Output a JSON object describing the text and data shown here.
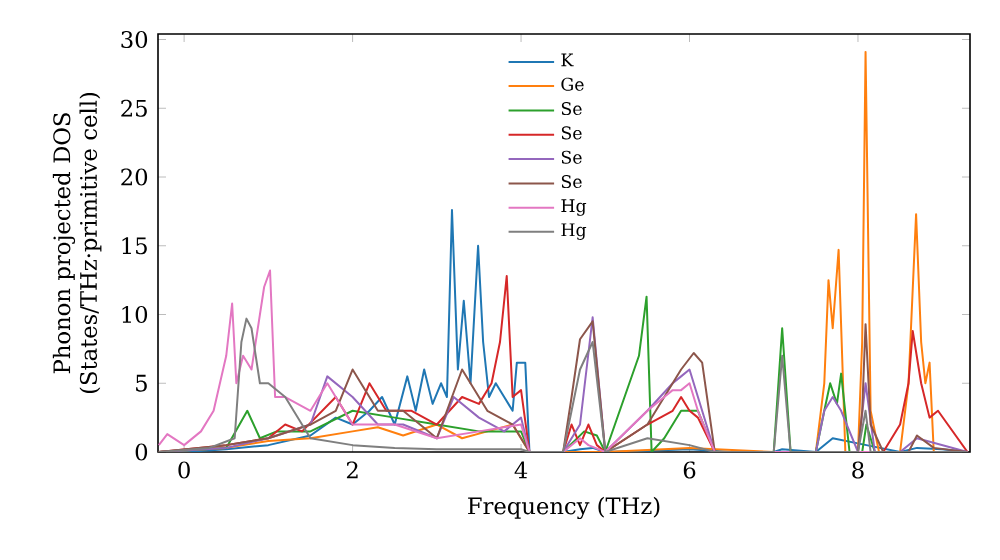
{
  "chart_data": {
    "type": "line",
    "xlabel": "Frequency (THz)",
    "ylabel": "Phonon projected DOS (States/THz·primitive cell)",
    "xlim": [
      -0.31,
      9.33
    ],
    "ylim": [
      0,
      30.4
    ],
    "xticks": [
      0,
      2,
      4,
      6,
      8
    ],
    "yticks": [
      0,
      5,
      10,
      15,
      20,
      25,
      30
    ],
    "legend": "top",
    "series": [
      {
        "name": "K",
        "color": "#1f77b4",
        "x": [
          -0.3,
          0,
          0.5,
          1.0,
          1.5,
          1.8,
          2.0,
          2.2,
          2.35,
          2.5,
          2.65,
          2.75,
          2.85,
          2.95,
          3.05,
          3.12,
          3.18,
          3.25,
          3.32,
          3.4,
          3.49,
          3.55,
          3.62,
          3.7,
          3.8,
          3.9,
          3.95,
          4.0,
          4.05,
          4.1,
          4.5,
          4.7,
          4.85,
          5.0,
          5.5,
          6.0,
          6.5,
          7.0,
          7.1,
          7.5,
          7.7,
          8.1,
          8.5,
          8.7,
          9.0,
          9.3
        ],
        "values": [
          0,
          0,
          0.2,
          0.5,
          1.2,
          2.5,
          2.0,
          3,
          4,
          2,
          5.5,
          3,
          6,
          3.5,
          5,
          4,
          17.6,
          6,
          11,
          5,
          15,
          8,
          4,
          5,
          4,
          3,
          6.5,
          6.5,
          6.5,
          0,
          0,
          0.2,
          0.3,
          0,
          0.1,
          0.2,
          0,
          0,
          0.2,
          0,
          1,
          0.5,
          0,
          0.3,
          0.2,
          0
        ]
      },
      {
        "name": "Ge",
        "color": "#ff7f0e",
        "x": [
          -0.3,
          0.5,
          1.0,
          1.5,
          2.0,
          2.3,
          2.6,
          3.0,
          3.3,
          3.6,
          3.9,
          4.1,
          5,
          6,
          7,
          7.5,
          7.6,
          7.65,
          7.7,
          7.77,
          7.85,
          8.0,
          8.05,
          8.09,
          8.15,
          8.25,
          8.5,
          8.6,
          8.69,
          8.75,
          8.8,
          8.85,
          8.9,
          9.3
        ],
        "values": [
          0,
          0.3,
          0.8,
          1,
          1.5,
          1.8,
          1.2,
          2,
          1,
          1.5,
          2,
          0,
          0,
          0.3,
          0,
          0,
          5,
          12.5,
          9,
          14.7,
          0,
          0,
          8,
          29.1,
          3,
          0,
          0,
          5,
          17.3,
          8,
          5,
          6.5,
          0,
          0
        ]
      },
      {
        "name": "Se",
        "color": "#2ca02c",
        "x": [
          -0.3,
          0.5,
          0.75,
          0.9,
          1.1,
          1.5,
          2.0,
          2.5,
          3.0,
          3.5,
          4.0,
          4.1,
          4.5,
          4.75,
          4.9,
          5.0,
          5.4,
          5.49,
          5.55,
          5.7,
          5.9,
          6.1,
          6.3,
          7.0,
          7.1,
          7.2,
          7.5,
          7.6,
          7.67,
          7.75,
          7.8,
          7.9,
          8.05,
          8.1,
          8.2,
          9.3
        ],
        "values": [
          0,
          0.3,
          3,
          1,
          1.5,
          1.5,
          3,
          2.5,
          2,
          1.5,
          1.5,
          0,
          0,
          1.5,
          1.2,
          0,
          7,
          11.3,
          0,
          1,
          3,
          3,
          0,
          0,
          9,
          0,
          0,
          3,
          5,
          3.5,
          5.7,
          0,
          0,
          2,
          0,
          0
        ]
      },
      {
        "name": "Se",
        "color": "#d62728",
        "x": [
          -0.3,
          0.5,
          1.0,
          1.2,
          1.4,
          1.8,
          2.0,
          2.2,
          2.4,
          2.7,
          3.0,
          3.3,
          3.5,
          3.65,
          3.75,
          3.83,
          3.9,
          4.0,
          4.1,
          4.5,
          4.6,
          4.7,
          4.8,
          4.9,
          5.0,
          5.5,
          5.8,
          5.9,
          6.0,
          6.1,
          6.3,
          8.3,
          8.5,
          8.6,
          8.65,
          8.75,
          8.85,
          8.95,
          9.3
        ],
        "values": [
          0,
          0.5,
          1,
          2,
          1.5,
          4,
          2,
          5,
          3,
          3,
          2,
          4,
          3.5,
          5,
          8,
          12.8,
          4,
          4.5,
          0,
          0,
          2,
          0.5,
          2,
          0.5,
          0,
          2,
          3,
          4,
          3,
          2.5,
          0,
          0,
          2,
          5,
          8.8,
          5,
          2.5,
          3,
          0
        ]
      },
      {
        "name": "Se",
        "color": "#9467bd",
        "x": [
          -0.3,
          0.5,
          1.0,
          1.5,
          1.7,
          2.0,
          2.3,
          2.6,
          3.0,
          3.2,
          3.5,
          3.8,
          4.0,
          4.1,
          4.5,
          4.7,
          4.85,
          5.0,
          5.5,
          5.8,
          5.9,
          6.0,
          6.1,
          6.3,
          7.5,
          7.6,
          7.7,
          7.8,
          8.0,
          8.09,
          8.2,
          8.5,
          8.7,
          9.3
        ],
        "values": [
          0,
          0.3,
          1,
          2,
          5.5,
          4,
          2,
          2,
          1,
          4,
          2.5,
          1.5,
          2.5,
          0,
          0,
          2,
          9.8,
          0,
          3,
          5,
          5.5,
          6,
          4,
          0,
          0,
          3,
          4,
          3,
          0,
          5,
          0,
          0,
          1,
          0
        ]
      },
      {
        "name": "Se",
        "color": "#8c564b",
        "x": [
          -0.3,
          0.5,
          1.0,
          1.5,
          1.8,
          2.0,
          2.3,
          2.6,
          3.0,
          3.3,
          3.6,
          3.9,
          4.1,
          4.5,
          4.6,
          4.7,
          4.85,
          5.0,
          5.5,
          5.7,
          5.8,
          5.9,
          6.05,
          6.15,
          6.3,
          8.0,
          8.05,
          8.09,
          8.15,
          8.3,
          8.6,
          8.7,
          8.9,
          9.3
        ],
        "values": [
          0,
          0.5,
          1,
          2,
          3,
          6,
          3,
          3,
          1,
          6,
          3,
          2,
          0,
          0,
          4,
          8.2,
          9.5,
          0,
          2,
          4,
          5,
          6,
          7.2,
          6.5,
          0,
          0,
          3,
          9.3,
          2,
          0,
          0,
          1.2,
          0.3,
          0
        ]
      },
      {
        "name": "Hg",
        "color": "#e377c2",
        "x": [
          -0.3,
          -0.2,
          0,
          0.2,
          0.35,
          0.5,
          0.57,
          0.62,
          0.7,
          0.8,
          0.9,
          0.95,
          1.02,
          1.08,
          1.2,
          1.5,
          1.7,
          2.0,
          2.5,
          3.0,
          3.5,
          4.0,
          4.1,
          4.5,
          4.7,
          4.8,
          5.0,
          5.5,
          5.7,
          5.8,
          5.9,
          6.0,
          6.1,
          6.3,
          9.3
        ],
        "values": [
          0.5,
          1.3,
          0.5,
          1.5,
          3,
          7,
          10.8,
          5,
          7,
          6,
          10,
          12,
          13.2,
          4,
          4,
          3,
          5,
          2,
          2,
          1,
          1.5,
          2,
          0,
          0,
          1,
          0.5,
          0,
          3,
          4,
          4.5,
          4.5,
          5,
          3,
          0,
          0
        ]
      },
      {
        "name": "Hg",
        "color": "#7f7f7f",
        "x": [
          -0.3,
          0.3,
          0.6,
          0.68,
          0.74,
          0.8,
          0.9,
          1.0,
          1.2,
          1.5,
          2.0,
          2.5,
          3.0,
          3.5,
          4.0,
          4.1,
          4.5,
          4.7,
          4.85,
          5.0,
          5.5,
          6.0,
          6.3,
          7.0,
          7.1,
          7.2,
          8.0,
          8.09,
          8.15,
          9.3
        ],
        "values": [
          0,
          0.3,
          1,
          8,
          9.7,
          9,
          5,
          5,
          4,
          1,
          0.5,
          0.3,
          0.2,
          0.2,
          0.2,
          0,
          0,
          6,
          8,
          0,
          1,
          0.5,
          0,
          0,
          7,
          0,
          0,
          3,
          0,
          0
        ]
      }
    ]
  }
}
